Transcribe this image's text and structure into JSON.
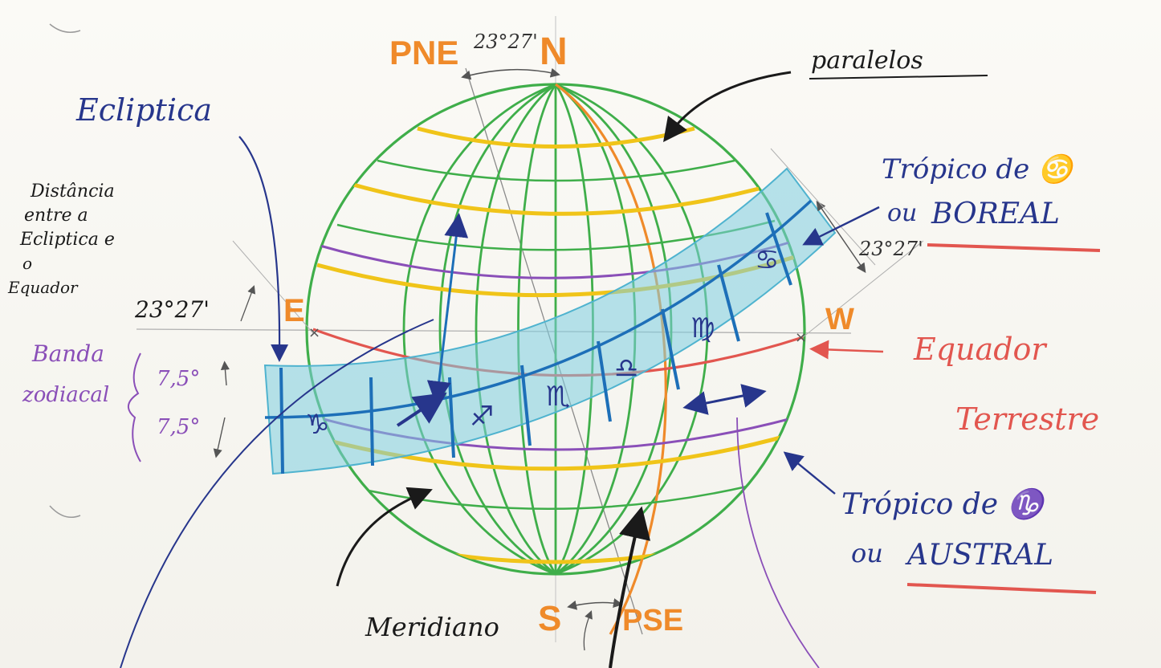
{
  "labels": {
    "pne": "PNE",
    "n": "N",
    "angle_top": "23°27'",
    "paralelos": "paralelos",
    "ecliptica": "Ecliptica",
    "distancia_line1": "Distância",
    "distancia_line2": "entre a",
    "distancia_line3": "Ecliptica e",
    "distancia_line4": "o",
    "distancia_line5": "Equador",
    "angle_left": "23°27'",
    "e": "E",
    "w": "W",
    "banda_line1": "Banda",
    "banda_line2": "zodiacal",
    "deg_upper": "7,5°",
    "deg_lower": "7,5°",
    "tropico_boreal_line1": "Trópico de ♋",
    "tropico_boreal_line2": "ou",
    "boreal": "BOREAL",
    "angle_right": "23°27'",
    "equador_line1": "Equador",
    "equador_line2": "Terrestre",
    "tropico_austral_line1": "Trópico de ♑",
    "tropico_austral_line2": "ou",
    "austral": "AUSTRAL",
    "meridiano": "Meridiano",
    "s": "S",
    "pse": "PSE"
  },
  "zodiac_signs": [
    "♑",
    "♐",
    "♏",
    "♎",
    "♍",
    "♌",
    "♋"
  ],
  "colors": {
    "green": "#3fae4a",
    "yellow": "#f0c419",
    "purple": "#8a4fb8",
    "red": "#e2564f",
    "orange": "#ef8a2a",
    "cyan": "#7dcde0",
    "blue": "#1d6fb8",
    "navy": "#27368c",
    "ink": "#1a1a1a"
  }
}
